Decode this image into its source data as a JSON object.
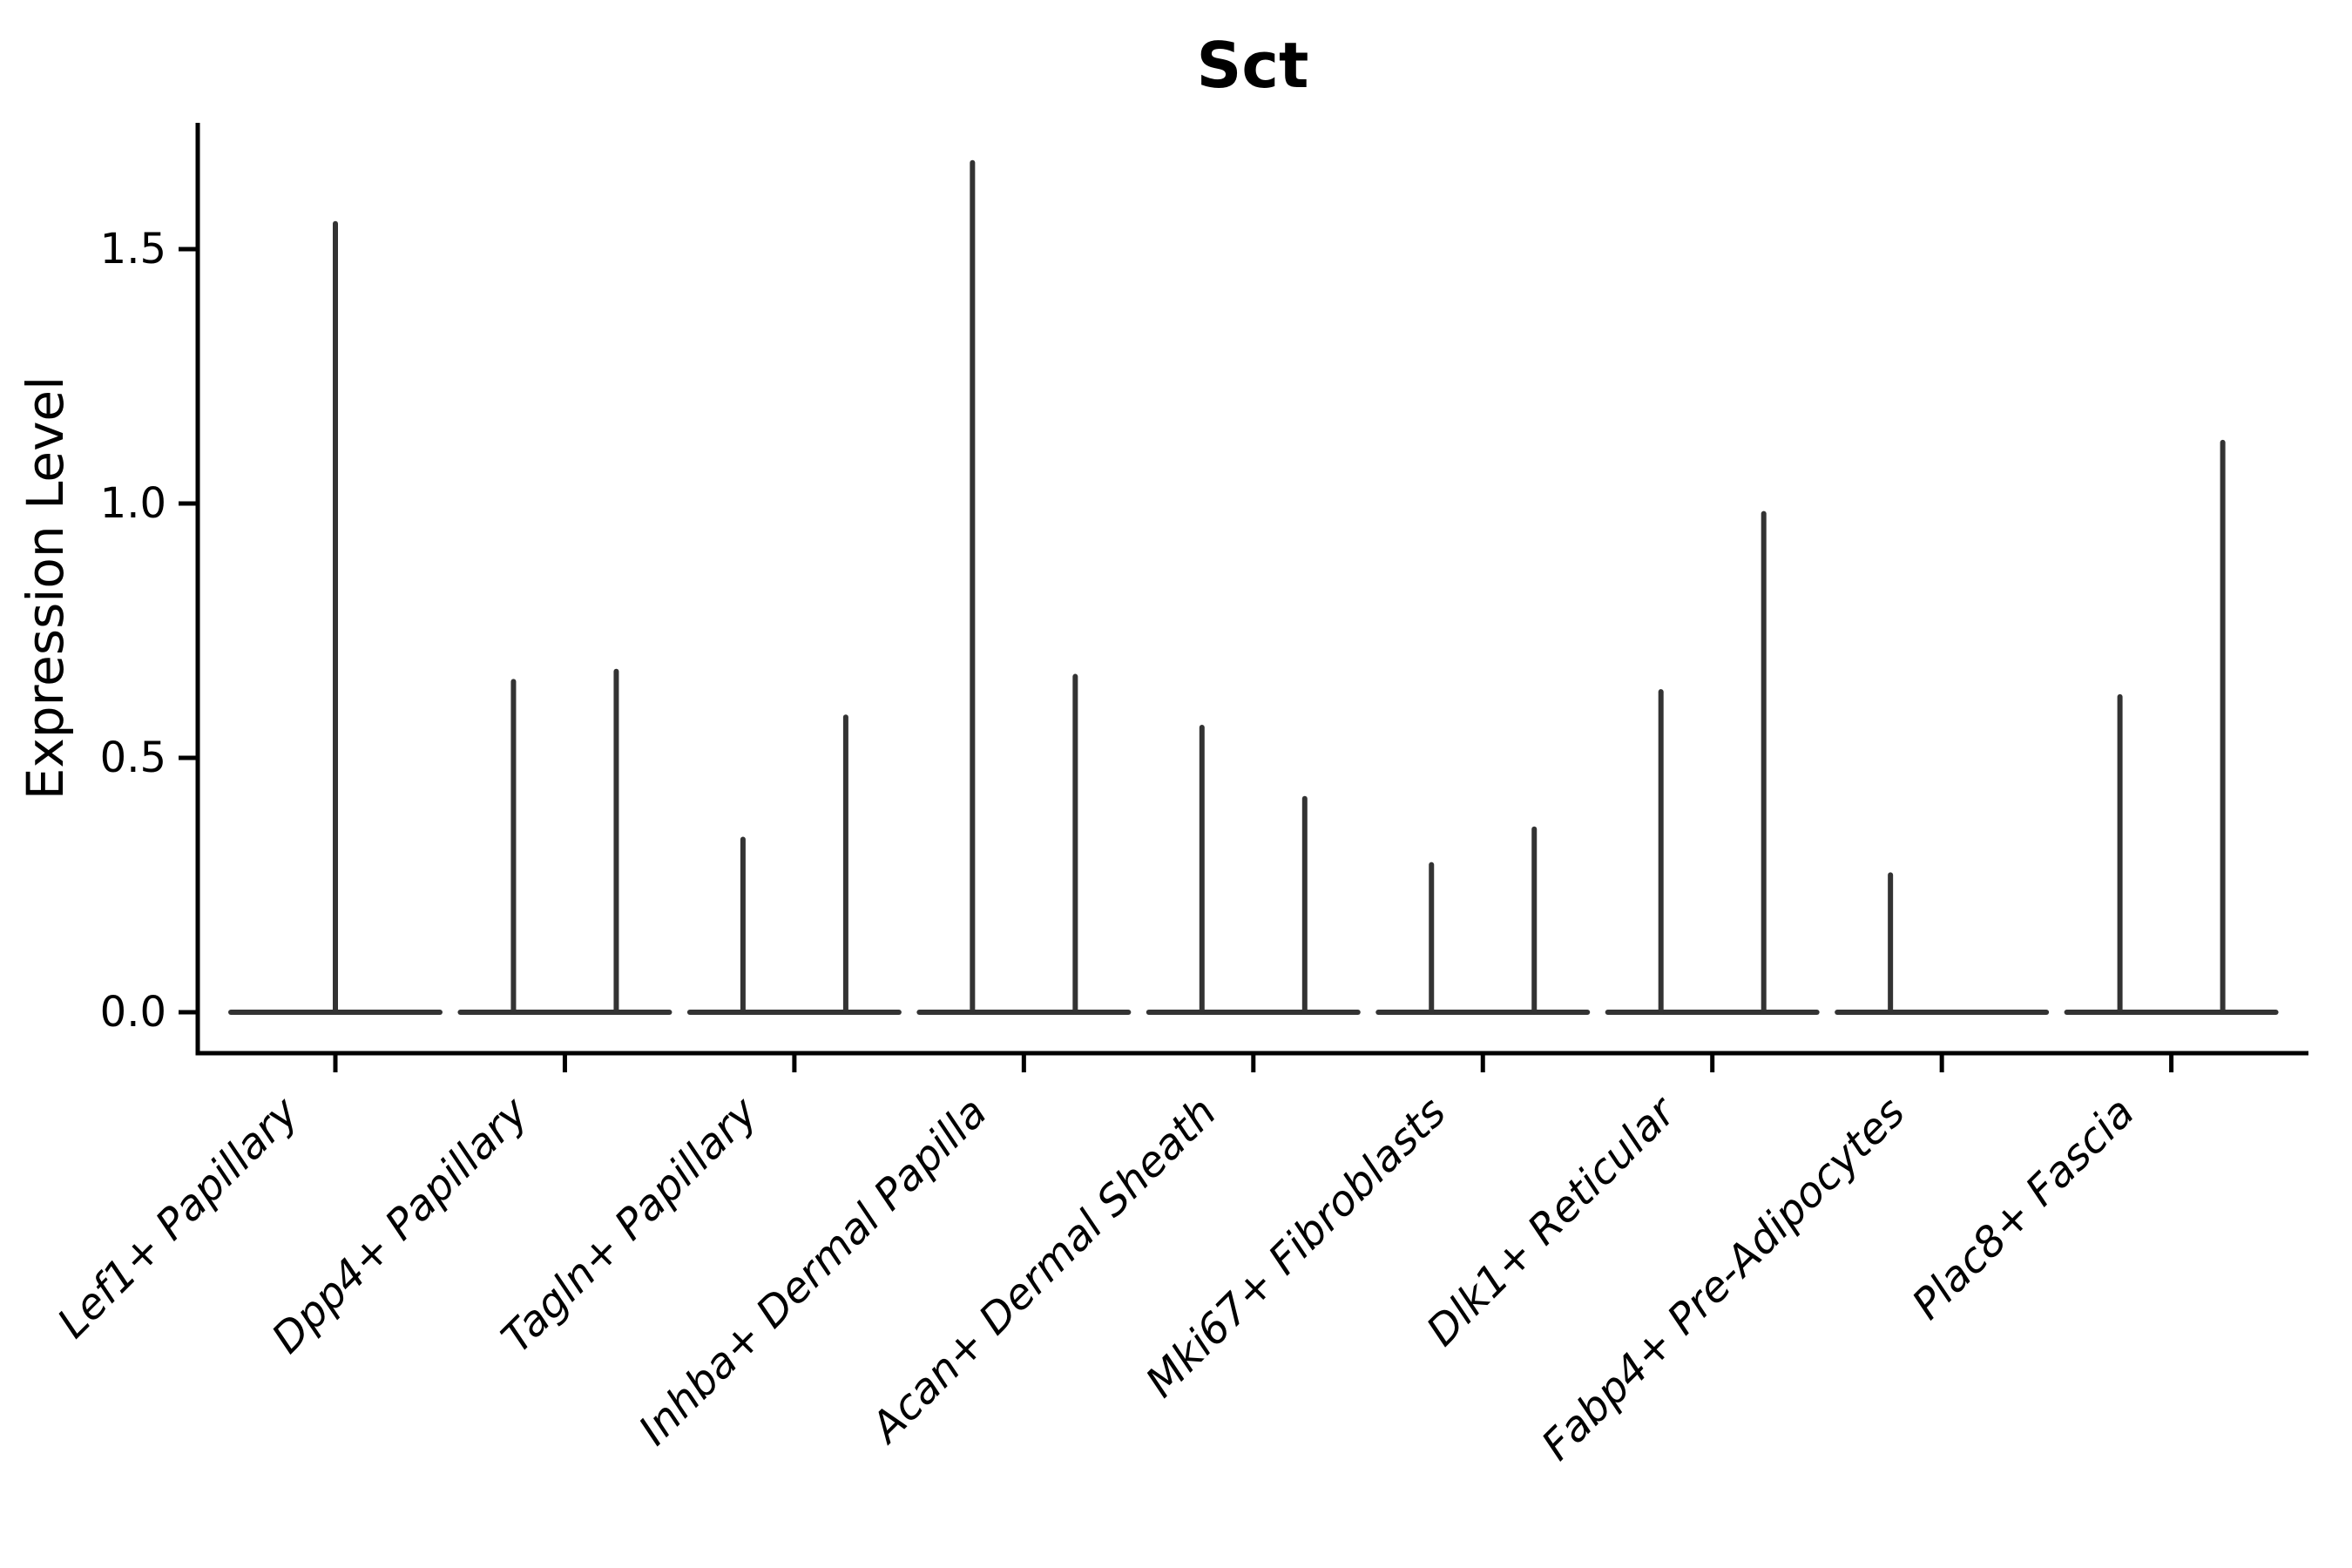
{
  "page": {
    "background": "#ffffff"
  },
  "chart_data": {
    "type": "violin",
    "title": "Sct",
    "ylabel": "Expression Level",
    "xlabel": "",
    "grid": false,
    "legend_position": "none",
    "ylim": [
      -0.08,
      1.75
    ],
    "baseline_value": 0.0,
    "yticks": [
      {
        "label": "0.0",
        "value": 0.0
      },
      {
        "label": "0.5",
        "value": 0.5
      },
      {
        "label": "1.0",
        "value": 1.0
      },
      {
        "label": "1.5",
        "value": 1.5
      }
    ],
    "colors": {
      "violin": "#333333",
      "axis": "#000000",
      "text": "#000000"
    },
    "categories": [
      {
        "label": "Lef1+ Papillary",
        "violins": [
          {
            "side": "center",
            "max": 1.55
          }
        ]
      },
      {
        "label": "Dpp4+ Papillary",
        "violins": [
          {
            "side": "left",
            "max": 0.65
          },
          {
            "side": "right",
            "max": 0.67
          }
        ]
      },
      {
        "label": "Tagln+ Papillary",
        "violins": [
          {
            "side": "left",
            "max": 0.34
          },
          {
            "side": "right",
            "max": 0.58
          }
        ]
      },
      {
        "label": "Inhba+ Dermal Papilla",
        "violins": [
          {
            "side": "left",
            "max": 1.67
          },
          {
            "side": "right",
            "max": 0.66
          }
        ]
      },
      {
        "label": "Acan+ Dermal Sheath",
        "violins": [
          {
            "side": "left",
            "max": 0.56
          },
          {
            "side": "right",
            "max": 0.42
          }
        ]
      },
      {
        "label": "Mki67+ Fibroblasts",
        "violins": [
          {
            "side": "left",
            "max": 0.29
          },
          {
            "side": "right",
            "max": 0.36
          }
        ]
      },
      {
        "label": "Dlk1+ Reticular",
        "violins": [
          {
            "side": "left",
            "max": 0.63
          },
          {
            "side": "right",
            "max": 0.98
          }
        ]
      },
      {
        "label": "Fabp4+ Pre-Adipocytes",
        "violins": [
          {
            "side": "left",
            "max": 0.27
          }
        ]
      },
      {
        "label": "Plac8+ Fascia",
        "violins": [
          {
            "side": "left",
            "max": 0.62
          },
          {
            "side": "right",
            "max": 1.12
          }
        ]
      }
    ]
  }
}
